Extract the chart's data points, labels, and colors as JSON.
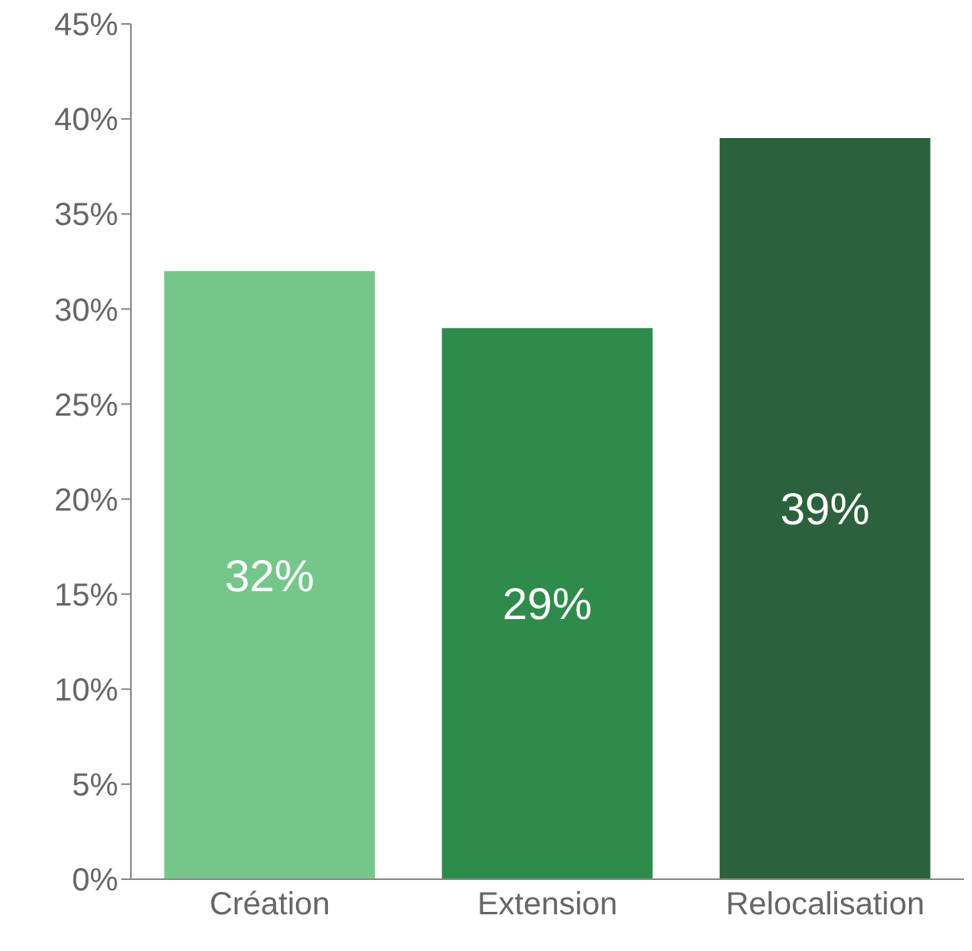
{
  "chart_data": {
    "type": "bar",
    "categories": [
      "Création",
      "Extension",
      "Relocalisation"
    ],
    "values": [
      32,
      29,
      39
    ],
    "colors": [
      "#76c68c",
      "#2e8b4b",
      "#2b623d"
    ],
    "value_labels": [
      "32%",
      "29%",
      "39%"
    ],
    "ylim": [
      0,
      45
    ],
    "yticks": [
      {
        "value": 0,
        "label": "0%"
      },
      {
        "value": 5,
        "label": "5%"
      },
      {
        "value": 10,
        "label": "10%"
      },
      {
        "value": 15,
        "label": "15%"
      },
      {
        "value": 20,
        "label": "20%"
      },
      {
        "value": 25,
        "label": "25%"
      },
      {
        "value": 30,
        "label": "30%"
      },
      {
        "value": 35,
        "label": "35%"
      },
      {
        "value": 40,
        "label": "40%"
      },
      {
        "value": 45,
        "label": "45%"
      }
    ],
    "grid": false,
    "legend": false
  }
}
